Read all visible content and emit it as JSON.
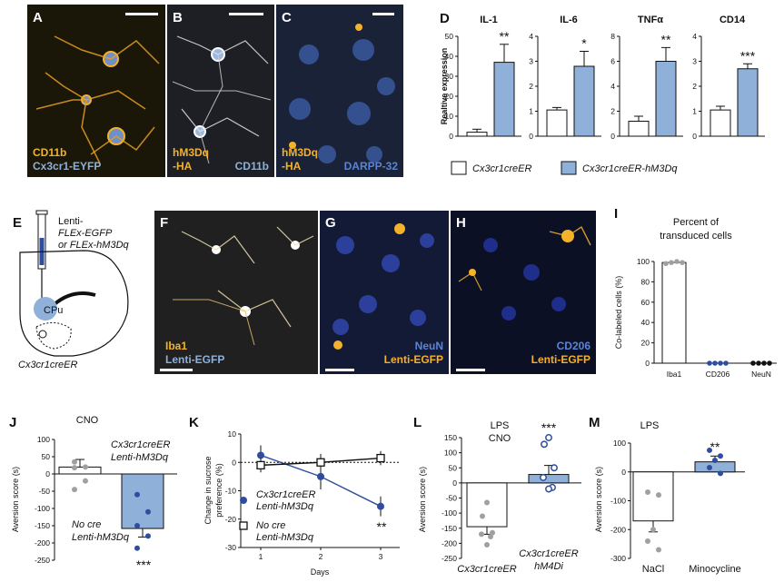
{
  "colors": {
    "blue": "#8fb0d8",
    "dblue": "#2f4d9e",
    "yellow": "#f4b22a",
    "grey": "#a0a0a0",
    "black": "#111111"
  },
  "panels": {
    "A": {
      "letter": "A",
      "lines": [
        "CD11b",
        "Cx3cr1-EYFP"
      ]
    },
    "B": {
      "letter": "B",
      "lines": [
        "hM3Dq",
        "-HA"
      ],
      "extra": "CD11b"
    },
    "C": {
      "letter": "C",
      "lines": [
        "hM3Dq",
        "-HA"
      ],
      "extra": "DARPP-32"
    },
    "E": {
      "letter": "E",
      "inj": "Lenti-",
      "inj2": "FLEx-EGFP",
      "inj3": "or FLEx-hM3Dq",
      "region": "CPu",
      "mouse": "Cx3cr1creER"
    },
    "F": {
      "letter": "F",
      "lines": [
        "Iba1",
        "Lenti-EGFP"
      ]
    },
    "G": {
      "letter": "G",
      "lines": [
        "NeuN",
        "Lenti-EGFP"
      ]
    },
    "H": {
      "letter": "H",
      "lines": [
        "CD206",
        "Lenti-EGFP"
      ]
    }
  },
  "chart_data": [
    {
      "id": "D",
      "letter": "D",
      "type": "bar",
      "ylabel": "Realtive expression",
      "legend": [
        "Cx3cr1creER",
        "Cx3cr1creER-hM3Dq"
      ],
      "subplots": [
        {
          "title": "IL-1",
          "yticks": [
            0,
            10,
            20,
            30,
            40,
            50
          ],
          "ylim": [
            0,
            50
          ],
          "values": [
            2,
            37
          ],
          "errors": [
            1.5,
            9
          ],
          "sig": "**"
        },
        {
          "title": "IL-6",
          "yticks": [
            0,
            1,
            2,
            3,
            4
          ],
          "ylim": [
            0,
            4
          ],
          "values": [
            1.05,
            2.8
          ],
          "errors": [
            0.1,
            0.6
          ],
          "sig": "*"
        },
        {
          "title": "TNFα",
          "yticks": [
            0,
            2,
            4,
            6,
            8
          ],
          "ylim": [
            0,
            8
          ],
          "values": [
            1.2,
            6
          ],
          "errors": [
            0.4,
            1.1
          ],
          "sig": "**"
        },
        {
          "title": "CD14",
          "yticks": [
            0,
            1,
            2,
            3,
            4
          ],
          "ylim": [
            0,
            4
          ],
          "values": [
            1.05,
            2.7
          ],
          "errors": [
            0.15,
            0.2
          ],
          "sig": "***"
        }
      ]
    },
    {
      "id": "I",
      "letter": "I",
      "type": "bar",
      "title": "Percent of transduced cells",
      "ylabel": "Co-labeled cells (%)",
      "yticks": [
        0,
        20,
        40,
        60,
        80,
        100
      ],
      "ylim": [
        0,
        100
      ],
      "categories": [
        "Iba1",
        "CD206",
        "NeuN"
      ],
      "values": [
        99,
        0,
        0
      ],
      "points": [
        [
          98,
          99,
          100,
          99
        ],
        [
          0,
          0,
          0,
          0
        ],
        [
          0,
          0,
          0,
          0
        ]
      ]
    },
    {
      "id": "J",
      "letter": "J",
      "type": "bar",
      "title": "CNO",
      "ylabel": "Aversion score (s)",
      "yticks": [
        100,
        50,
        0,
        -50,
        -100,
        -150,
        -200,
        -250
      ],
      "ylim": [
        -250,
        100
      ],
      "groups": [
        "No cre Lenti-hM3Dq",
        "Cx3cr1creER Lenti-hM3Dq"
      ],
      "values": [
        20,
        -158
      ],
      "errors": [
        22,
        25
      ],
      "sig": "***",
      "points": [
        [
          35,
          20,
          18,
          -20,
          -45
        ],
        [
          -60,
          -110,
          -150,
          -180,
          -215
        ]
      ]
    },
    {
      "id": "K",
      "letter": "K",
      "type": "line",
      "xlabel": "Days",
      "ylabel": "Change in sucrose preference (%)",
      "yticks": [
        10,
        0,
        -10,
        -20,
        -30
      ],
      "ylim": [
        -30,
        10
      ],
      "xticks": [
        1,
        2,
        3
      ],
      "series": [
        {
          "name": "Cx3cr1creER Lenti-hM3Dq",
          "x": [
            1,
            2,
            3
          ],
          "y": [
            2.5,
            -5,
            -15.5
          ],
          "err": [
            3.5,
            4.5,
            3.5
          ]
        },
        {
          "name": "No cre Lenti-hM3Dq",
          "x": [
            1,
            2,
            3
          ],
          "y": [
            -1,
            0,
            1.5
          ],
          "err": [
            2.5,
            3,
            2.5
          ]
        }
      ],
      "sig": "**"
    },
    {
      "id": "L",
      "letter": "L",
      "type": "bar",
      "title": "LPS",
      "title2": "CNO",
      "ylabel": "Aversion score (s)",
      "yticks": [
        150,
        100,
        50,
        0,
        -50,
        -100,
        -150,
        -200,
        -250
      ],
      "ylim": [
        -250,
        150
      ],
      "groups": [
        "Cx3cr1creER",
        "Cx3cr1creER hM4Di"
      ],
      "values": [
        -145,
        28
      ],
      "errors": [
        25,
        30
      ],
      "sig": "***",
      "points": [
        [
          -65,
          -110,
          -165,
          -170,
          -178,
          -205
        ],
        [
          150,
          128,
          50,
          18,
          -15,
          -20
        ]
      ]
    },
    {
      "id": "M",
      "letter": "M",
      "type": "bar",
      "title": "LPS",
      "ylabel": "Aversion score (s)",
      "yticks": [
        100,
        0,
        -100,
        -200,
        -300
      ],
      "ylim": [
        -300,
        100
      ],
      "groups": [
        "NaCl",
        "Minocycline"
      ],
      "values": [
        -170,
        35
      ],
      "errors": [
        38,
        20
      ],
      "sig": "**",
      "points": [
        [
          -70,
          -80,
          -200,
          -240,
          -270
        ],
        [
          75,
          55,
          40,
          15,
          -5
        ]
      ]
    }
  ]
}
